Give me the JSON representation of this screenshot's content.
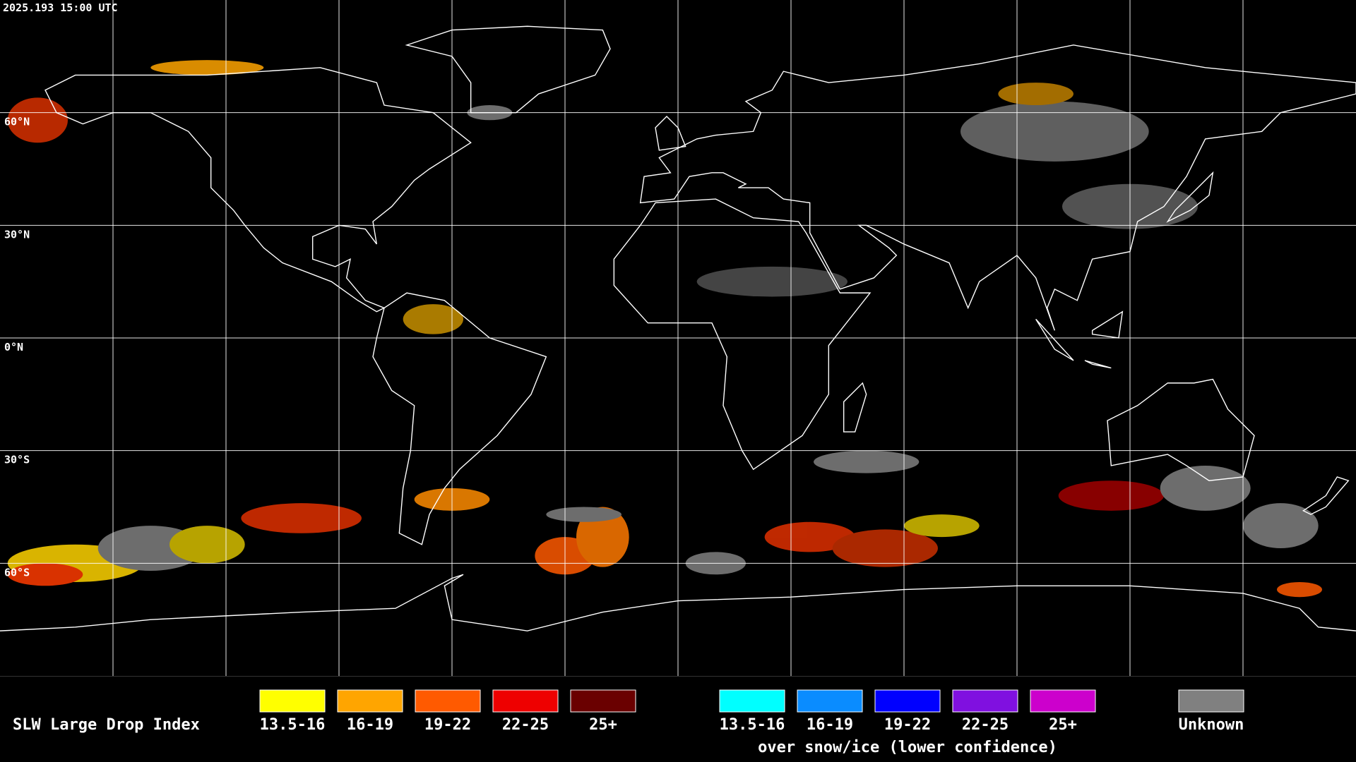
{
  "header": {
    "timestamp": "2025.193 15:00 UTC"
  },
  "map": {
    "lat_labels": [
      "60°N",
      "30°N",
      "0°N",
      "30°S",
      "60°S"
    ]
  },
  "legend": {
    "title": "SLW Large Drop Index",
    "groups": [
      {
        "items": [
          {
            "label": "13.5-16",
            "color": "#ffff00"
          },
          {
            "label": "16-19",
            "color": "#ffa500"
          },
          {
            "label": "19-22",
            "color": "#ff5a00"
          },
          {
            "label": "22-25",
            "color": "#ee0000"
          },
          {
            "label": "25+",
            "color": "#6a0000"
          }
        ]
      },
      {
        "items": [
          {
            "label": "13.5-16",
            "color": "#00ffff"
          },
          {
            "label": "16-19",
            "color": "#0a8cff"
          },
          {
            "label": "19-22",
            "color": "#0000ff"
          },
          {
            "label": "22-25",
            "color": "#8010e0"
          },
          {
            "label": "25+",
            "color": "#cc00cc"
          }
        ],
        "caption": "over snow/ice (lower confidence)"
      }
    ],
    "unknown": {
      "label": "Unknown",
      "color": "#808080"
    }
  }
}
